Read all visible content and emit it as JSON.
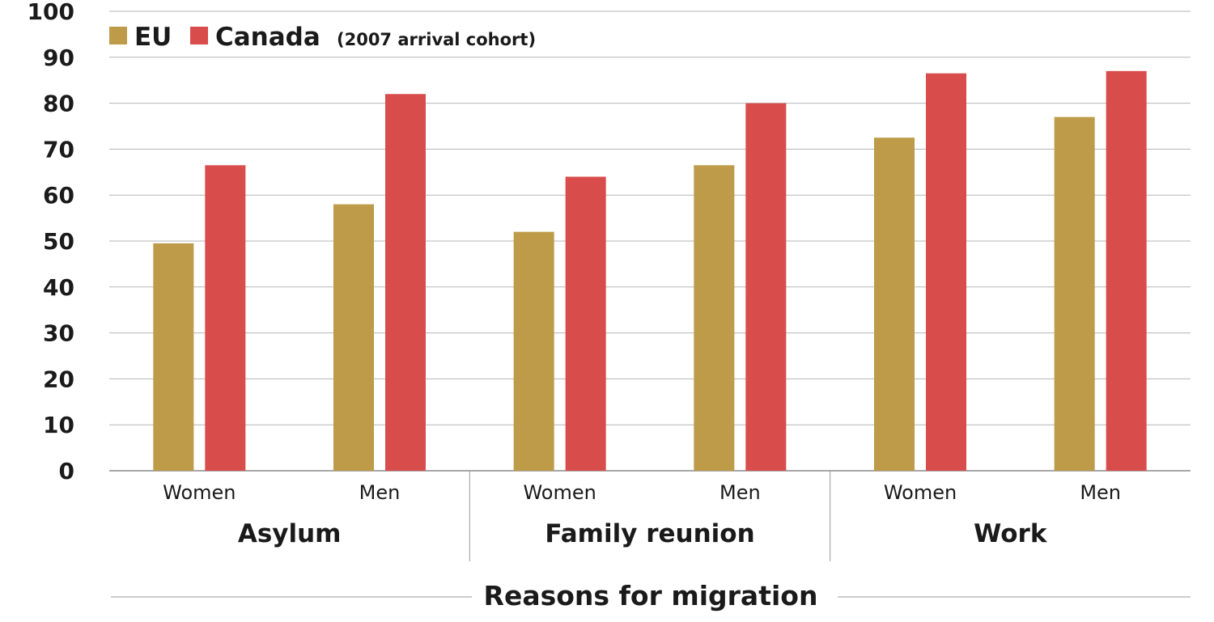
{
  "chart_data": {
    "type": "bar",
    "xlabel": "Reasons for migration",
    "ylabel": "",
    "ylim": [
      0,
      100
    ],
    "yticks": [
      0,
      10,
      20,
      30,
      40,
      50,
      60,
      70,
      80,
      90,
      100
    ],
    "grid": true,
    "legend_placement": "top-left",
    "legend_note": "(2007 arrival cohort)",
    "groups": [
      "Asylum",
      "Family reunion",
      "Work"
    ],
    "categories": [
      "Women",
      "Men",
      "Women",
      "Men",
      "Women",
      "Men"
    ],
    "series": [
      {
        "name": "EU",
        "color": "#bd9b49",
        "values": [
          49.5,
          58,
          52,
          66.5,
          72.5,
          77
        ]
      },
      {
        "name": "Canada",
        "color": "#d94c4c",
        "values": [
          66.5,
          82,
          64,
          80,
          86.5,
          87
        ]
      }
    ]
  }
}
